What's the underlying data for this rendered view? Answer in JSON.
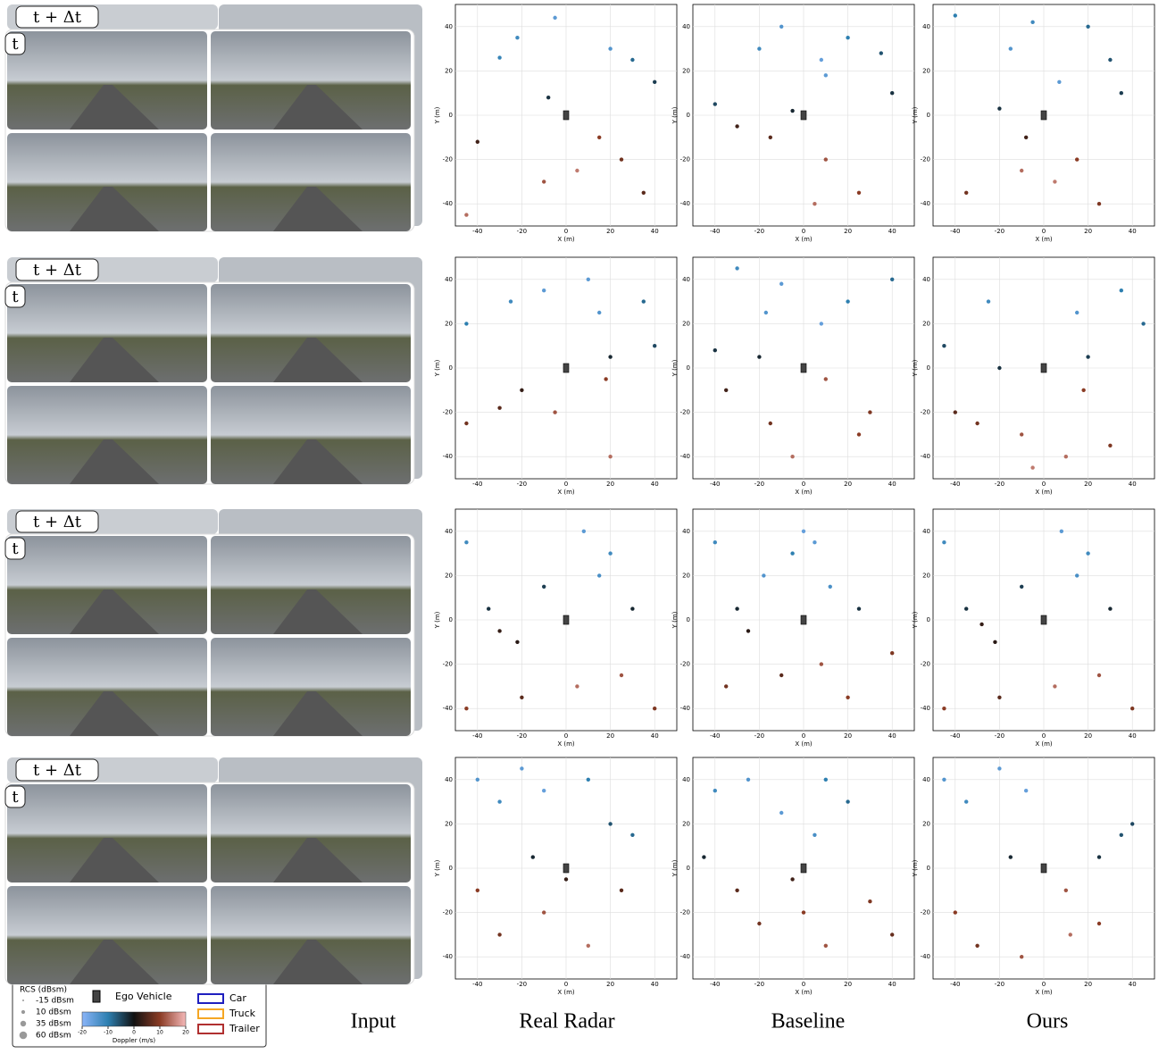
{
  "figure": {
    "labels": {
      "next": "t + Δt",
      "now": "t"
    },
    "columns": [
      "Input",
      "Real Radar",
      "Baseline",
      "Ours"
    ],
    "axes": {
      "xlim": [
        -50,
        50
      ],
      "ylim": [
        -50,
        50
      ],
      "xticks": [
        -40,
        -20,
        0,
        20,
        40
      ],
      "yticks": [
        -40,
        -20,
        0,
        20,
        40
      ],
      "xlabel": "X (m)",
      "ylabel": "Y (m)"
    },
    "rows": [
      {
        "plots": [
          {
            "x": [
              -22,
              -5,
              -8,
              20,
              30,
              40,
              -40,
              -10,
              25,
              35,
              -45,
              15,
              -30,
              5
            ],
            "y": [
              35,
              44,
              8,
              30,
              25,
              15,
              -12,
              -30,
              -20,
              -35,
              -45,
              -10,
              26,
              -25
            ],
            "doppler": [
              -12,
              -15,
              -3,
              -14,
              -8,
              -4,
              4,
              12,
              8,
              6,
              14,
              10,
              -11,
              15
            ]
          },
          {
            "x": [
              -10,
              -20,
              8,
              10,
              20,
              35,
              -5,
              -15,
              10,
              25,
              -40,
              5,
              -30,
              40
            ],
            "y": [
              40,
              30,
              25,
              18,
              35,
              28,
              2,
              -10,
              -20,
              -35,
              5,
              -40,
              -5,
              10
            ],
            "doppler": [
              -14,
              -12,
              -16,
              -15,
              -10,
              -6,
              -2,
              6,
              12,
              10,
              -5,
              14,
              4,
              -3
            ],
            "dummy": null
          },
          {
            "x": [
              -40,
              -15,
              -5,
              7,
              20,
              30,
              -35,
              -10,
              15,
              25,
              -20,
              5,
              -8,
              35
            ],
            "y": [
              45,
              30,
              42,
              15,
              40,
              25,
              -35,
              -25,
              -20,
              -40,
              3,
              -30,
              -10,
              10
            ],
            "doppler": [
              -10,
              -14,
              -12,
              -15,
              -8,
              -6,
              8,
              14,
              10,
              9,
              -3,
              15,
              4,
              -4
            ]
          }
        ]
      },
      {
        "plots": [
          {
            "x": [
              -45,
              -25,
              -10,
              15,
              20,
              35,
              -30,
              -20,
              18,
              20,
              -5,
              -45,
              10,
              40
            ],
            "y": [
              20,
              30,
              35,
              25,
              5,
              30,
              -18,
              -10,
              -5,
              -40,
              -20,
              -25,
              40,
              10
            ],
            "doppler": [
              -10,
              -12,
              -15,
              -14,
              -2,
              -8,
              6,
              3,
              10,
              14,
              12,
              8,
              -15,
              -5
            ]
          },
          {
            "x": [
              -30,
              -17,
              -10,
              8,
              20,
              40,
              -35,
              -15,
              10,
              25,
              -40,
              -5,
              30,
              -20
            ],
            "y": [
              45,
              25,
              38,
              20,
              30,
              40,
              -10,
              -25,
              -5,
              -30,
              8,
              -40,
              -20,
              5
            ],
            "doppler": [
              -12,
              -14,
              -15,
              -16,
              -10,
              -8,
              4,
              8,
              12,
              10,
              -3,
              14,
              9,
              -2
            ]
          },
          {
            "x": [
              -25,
              -20,
              15,
              20,
              35,
              45,
              -40,
              -30,
              18,
              10,
              -10,
              -5,
              30,
              -45
            ],
            "y": [
              30,
              0,
              25,
              5,
              35,
              20,
              -20,
              -25,
              -10,
              -40,
              -30,
              -45,
              -35,
              10
            ],
            "doppler": [
              -12,
              -3,
              -14,
              -4,
              -10,
              -8,
              6,
              8,
              10,
              14,
              12,
              15,
              9,
              -5
            ]
          }
        ]
      },
      {
        "plots": [
          {
            "x": [
              -45,
              -35,
              -22,
              -10,
              8,
              20,
              30,
              -45,
              -20,
              5,
              25,
              40,
              -30,
              15
            ],
            "y": [
              35,
              5,
              -10,
              15,
              40,
              30,
              5,
              -40,
              -35,
              -30,
              -25,
              -40,
              -5,
              20
            ],
            "doppler": [
              -12,
              -3,
              2,
              -4,
              -15,
              -12,
              -2,
              10,
              6,
              14,
              12,
              9,
              3,
              -13
            ]
          },
          {
            "x": [
              -40,
              -30,
              -18,
              -5,
              5,
              12,
              25,
              -35,
              -10,
              8,
              20,
              40,
              -25,
              0
            ],
            "y": [
              35,
              5,
              20,
              30,
              35,
              15,
              5,
              -30,
              -25,
              -20,
              -35,
              -15,
              -5,
              40
            ],
            "doppler": [
              -12,
              -2,
              -14,
              -10,
              -15,
              -13,
              -3,
              8,
              6,
              12,
              10,
              9,
              2,
              -16
            ]
          },
          {
            "x": [
              -45,
              -35,
              -22,
              -10,
              8,
              20,
              30,
              -45,
              -20,
              5,
              25,
              40,
              -28,
              15
            ],
            "y": [
              35,
              5,
              -10,
              15,
              40,
              30,
              5,
              -40,
              -35,
              -30,
              -25,
              -40,
              -2,
              20
            ],
            "doppler": [
              -12,
              -3,
              2,
              -4,
              -15,
              -12,
              -2,
              10,
              6,
              14,
              12,
              9,
              3,
              -13
            ]
          }
        ]
      },
      {
        "plots": [
          {
            "x": [
              -40,
              -30,
              -20,
              -10,
              10,
              20,
              30,
              -40,
              -30,
              -10,
              10,
              25,
              -15,
              0
            ],
            "y": [
              40,
              30,
              45,
              35,
              40,
              20,
              15,
              -10,
              -30,
              -20,
              -35,
              -10,
              5,
              -5
            ],
            "doppler": [
              -14,
              -12,
              -15,
              -16,
              -10,
              -6,
              -8,
              10,
              8,
              12,
              14,
              6,
              -2,
              3
            ]
          },
          {
            "x": [
              -40,
              -25,
              -10,
              5,
              10,
              20,
              -30,
              -20,
              0,
              10,
              30,
              -45,
              -5,
              40
            ],
            "y": [
              35,
              40,
              25,
              15,
              40,
              30,
              -10,
              -25,
              -20,
              -35,
              -15,
              5,
              -5,
              -30
            ],
            "doppler": [
              -12,
              -14,
              -15,
              -13,
              -10,
              -8,
              6,
              8,
              10,
              12,
              9,
              -2,
              4,
              7
            ]
          },
          {
            "x": [
              -45,
              -35,
              -20,
              -8,
              10,
              25,
              35,
              -40,
              -30,
              -10,
              12,
              25,
              -15,
              40
            ],
            "y": [
              40,
              30,
              45,
              35,
              -10,
              5,
              15,
              -20,
              -35,
              -40,
              -30,
              -25,
              5,
              20
            ],
            "doppler": [
              -14,
              -12,
              -15,
              -16,
              12,
              -3,
              -6,
              10,
              8,
              12,
              14,
              10,
              -2,
              -5
            ]
          }
        ]
      }
    ],
    "legend": {
      "rcs_title": "RCS (dBsm)",
      "rcs": [
        "-15 dBsm",
        "10 dBsm",
        "35 dBsm",
        "60 dBsm"
      ],
      "ego": "Ego Vehicle",
      "boxes": [
        {
          "name": "Car",
          "color": "#1f1fbf"
        },
        {
          "name": "Truck",
          "color": "#f5a623"
        },
        {
          "name": "Trailer",
          "color": "#b03030"
        }
      ],
      "doppler_label": "Doppler (m/s)",
      "doppler_lim": [
        -20,
        20
      ],
      "doppler_ticks": [
        -20,
        -10,
        0,
        10,
        20
      ]
    }
  }
}
